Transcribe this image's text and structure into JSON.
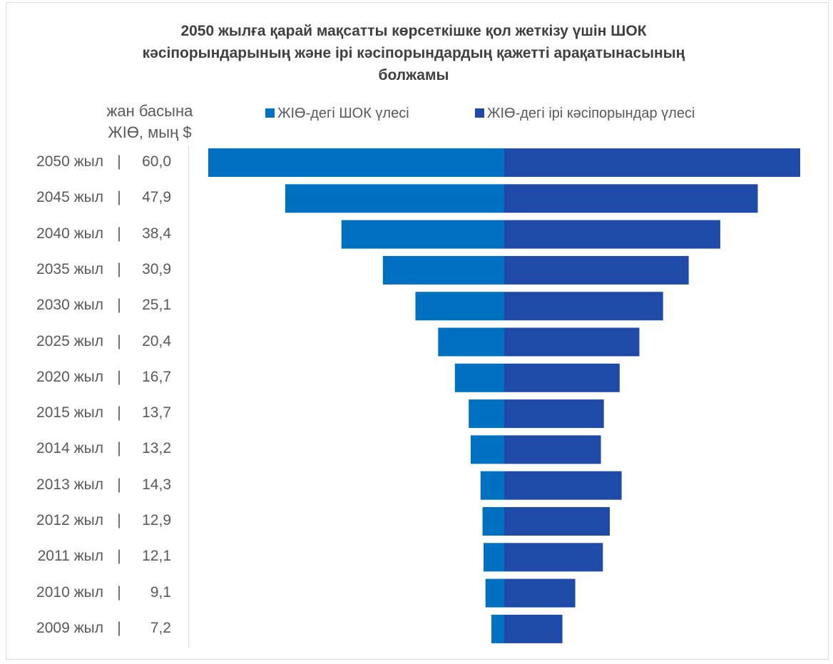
{
  "chart_data": {
    "type": "bar",
    "title": "2050 жылға қарай мақсатты көрсеткішке қол жеткізу үшін ШОК кәсіпорындарының және ірі кәсіпорындардың қажетті арақатынасының болжамы",
    "title_lines": [
      "2050 жылға қарай мақсатты көрсеткішке қол жеткізу үшін ШОК",
      "кәсіпорындарының және ірі кәсіпорындардың қажетті арақатынасының",
      "болжамы"
    ],
    "ylabel_lines": [
      "жан басына",
      "ЖІӨ, мың $"
    ],
    "separator": "|",
    "categories": [
      "2050 жыл",
      "2045 жыл",
      "2040 жыл",
      "2035 жыл",
      "2030 жыл",
      "2025 жыл",
      "2020 жыл",
      "2015 жыл",
      "2014 жыл",
      "2013 жыл",
      "2012 жыл",
      "2011 жыл",
      "2010 жыл",
      "2009 жыл"
    ],
    "gdp_labels": [
      "60,0",
      "47,9",
      "38,4",
      "30,9",
      "25,1",
      "20,4",
      "16,7",
      "13,7",
      "13,2",
      "14,3",
      "12,9",
      "12,1",
      "9,1",
      "7,2"
    ],
    "series": [
      {
        "name": "ЖІӨ-дегі ШОК үлесі",
        "color": "#0070c0",
        "values": [
          30.0,
          22.2,
          16.5,
          12.3,
          9.0,
          6.7,
          5.0,
          3.6,
          3.4,
          2.4,
          2.2,
          2.1,
          1.9,
          1.3
        ]
      },
      {
        "name": "ЖІӨ-дегі ірі кәсіпорындар үлесі",
        "color": "#1f4aa8",
        "values": [
          30.0,
          25.7,
          21.9,
          18.7,
          16.1,
          13.7,
          11.7,
          10.1,
          9.8,
          11.9,
          10.7,
          10.0,
          7.2,
          5.9
        ]
      }
    ],
    "xlim": [
      -30,
      30
    ],
    "legend_position": "top",
    "grid": false
  }
}
